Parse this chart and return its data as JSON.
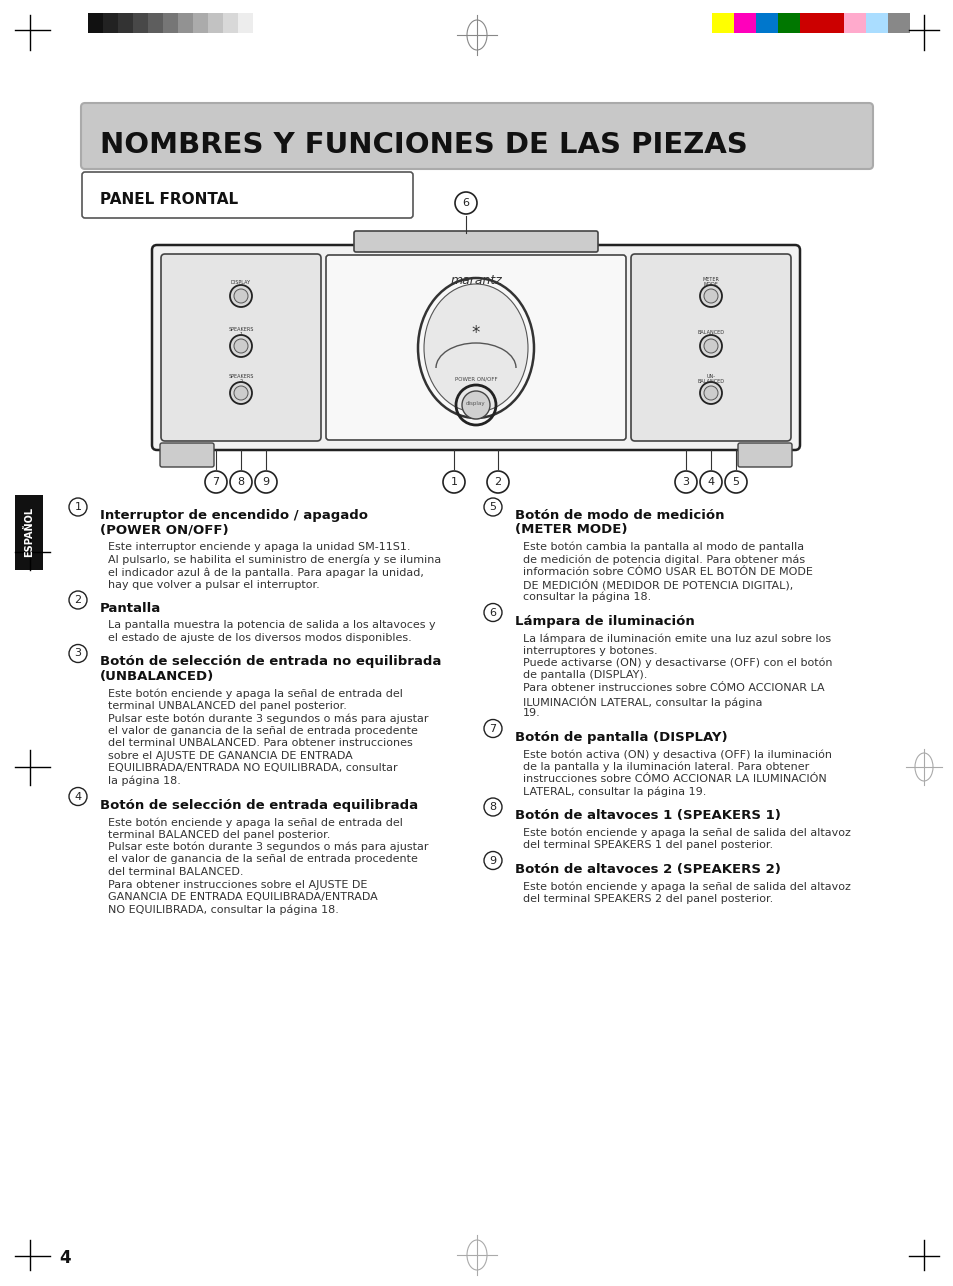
{
  "bg_color": "#ffffff",
  "title_text": "NOMBRES Y FUNCIONES DE LAS PIEZAS",
  "subtitle_text": "PANEL FRONTAL",
  "page_number": "4",
  "gray_bar_colors": [
    "#111111",
    "#222222",
    "#333333",
    "#484848",
    "#5e5e5e",
    "#767676",
    "#929292",
    "#ababab",
    "#c2c2c2",
    "#d8d8d8",
    "#ededed",
    "#ffffff"
  ],
  "color_bar_colors": [
    "#ffff00",
    "#ff00bb",
    "#0077cc",
    "#007700",
    "#cc0000",
    "#cc0000",
    "#ffaacc",
    "#aaddff",
    "#888888"
  ],
  "sections_left": [
    {
      "num": "1",
      "h1": "Interruptor de encendido / apagado",
      "h2": "(POWER ON/OFF)",
      "body": [
        "Este interruptor enciende y apaga la unidad SM-11S1.",
        "Al pulsarlo, se habilita el suministro de energía y se ilumina",
        "el indicador azul â de la pantalla. Para apagar la unidad,",
        "hay que volver a pulsar el interruptor."
      ]
    },
    {
      "num": "2",
      "h1": "Pantalla",
      "h2": "",
      "body": [
        "La pantalla muestra la potencia de salida a los altavoces y",
        "el estado de ajuste de los diversos modos disponibles."
      ]
    },
    {
      "num": "3",
      "h1": "Botón de selección de entrada no equilibrada",
      "h2": "(UNBALANCED)",
      "body": [
        "Este botón enciende y apaga la señal de entrada del",
        "terminal UNBALANCED del panel posterior.",
        "Pulsar este botón durante 3 segundos o más para ajustar",
        "el valor de ganancia de la señal de entrada procedente",
        "del terminal UNBALANCED. Para obtener instrucciones",
        "sobre el AJUSTE DE GANANCIA DE ENTRADA",
        "EQUILIBRADA/ENTRADA NO EQUILIBRADA, consultar",
        "la página 18."
      ]
    },
    {
      "num": "4",
      "h1": "Botón de selección de entrada equilibrada",
      "h2": "",
      "body": [
        "Este botón enciende y apaga la señal de entrada del",
        "terminal BALANCED del panel posterior.",
        "Pulsar este botón durante 3 segundos o más para ajustar",
        "el valor de ganancia de la señal de entrada procedente",
        "del terminal BALANCED.",
        "Para obtener instrucciones sobre el AJUSTE DE",
        "GANANCIA DE ENTRADA EQUILIBRADA/ENTRADA",
        "NO EQUILIBRADA, consultar la página 18."
      ]
    }
  ],
  "sections_right": [
    {
      "num": "5",
      "h1": "Botón de modo de medición",
      "h2": "(METER MODE)",
      "body": [
        "Este botón cambia la pantalla al modo de pantalla",
        "de medición de potencia digital. Para obtener más",
        "información sobre CÓMO USAR EL BOTÓN DE MODE",
        "DE MEDICIÓN (MEDIDOR DE POTENCIA DIGITAL),",
        "consultar la página 18."
      ]
    },
    {
      "num": "6",
      "h1": "Lámpara de iluminación",
      "h2": "",
      "body": [
        "La lámpara de iluminación emite una luz azul sobre los",
        "interruptores y botones.",
        "Puede activarse (ON) y desactivarse (OFF) con el botón",
        "de pantalla (DISPLAY).",
        "Para obtener instrucciones sobre CÓMO ACCIONAR LA",
        "ILUMINACIÓN LATERAL, consultar la página",
        "19."
      ]
    },
    {
      "num": "7",
      "h1": "Botón de pantalla (DISPLAY)",
      "h2": "",
      "body": [
        "Este botón activa (ON) y desactiva (OFF) la iluminación",
        "de la pantalla y la iluminación lateral. Para obtener",
        "instrucciones sobre CÓMO ACCIONAR LA ILUMINACIÓN",
        "LATERAL, consultar la página 19."
      ]
    },
    {
      "num": "8",
      "h1": "Botón de altavoces 1 (SPEAKERS 1)",
      "h2": "",
      "body": [
        "Este botón enciende y apaga la señal de salida del altavoz",
        "del terminal SPEAKERS 1 del panel posterior."
      ]
    },
    {
      "num": "9",
      "h1": "Botón de altavoces 2 (SPEAKERS 2)",
      "h2": "",
      "body": [
        "Este botón enciende y apaga la señal de salida del altavoz",
        "del terminal SPEAKERS 2 del panel posterior."
      ]
    }
  ]
}
